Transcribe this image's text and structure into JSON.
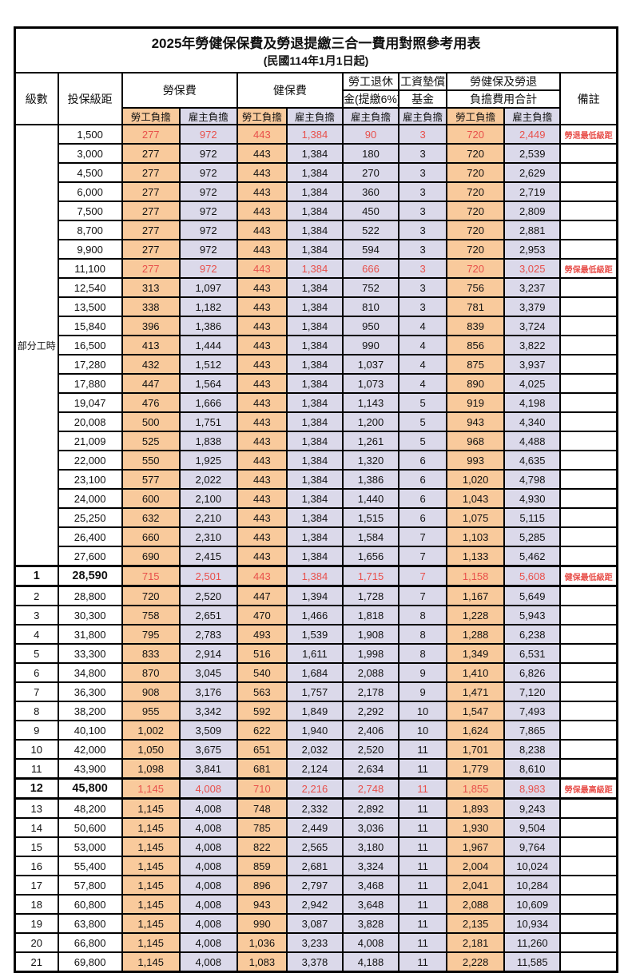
{
  "title": "2025年勞健保保費及勞退提繳三合一費用對照參考用表",
  "subtitle": "(民國114年1月1日起)",
  "colors": {
    "employee_bg": "#F9CA9C",
    "employer_bg": "#DBD9EA",
    "highlight_red": "#E8504B",
    "border": "#000000"
  },
  "table": {
    "headers": {
      "level": "級數",
      "bracket": "投保級距",
      "labor": "勞保費",
      "health": "健保費",
      "pension_l1": "勞工退休",
      "pension_l2": "金(提繳6%)",
      "wagefund_l1": "工資墊償",
      "wagefund_l2": "基金",
      "total_l1": "勞健保及勞退",
      "total_l2": "負擔費用合計",
      "employee": "勞工負擔",
      "employer": "雇主負擔",
      "note": "備註"
    },
    "part_time_label": "部分工時",
    "part_time_row_count": 23,
    "rows": [
      {
        "level": "",
        "bracket": "1,500",
        "values": [
          "277",
          "972",
          "443",
          "1,384",
          "90",
          "3",
          "720",
          "2,449"
        ],
        "note": "勞退最低級距",
        "red": true
      },
      {
        "level": "",
        "bracket": "3,000",
        "values": [
          "277",
          "972",
          "443",
          "1,384",
          "180",
          "3",
          "720",
          "2,539"
        ],
        "note": ""
      },
      {
        "level": "",
        "bracket": "4,500",
        "values": [
          "277",
          "972",
          "443",
          "1,384",
          "270",
          "3",
          "720",
          "2,629"
        ],
        "note": ""
      },
      {
        "level": "",
        "bracket": "6,000",
        "values": [
          "277",
          "972",
          "443",
          "1,384",
          "360",
          "3",
          "720",
          "2,719"
        ],
        "note": ""
      },
      {
        "level": "",
        "bracket": "7,500",
        "values": [
          "277",
          "972",
          "443",
          "1,384",
          "450",
          "3",
          "720",
          "2,809"
        ],
        "note": ""
      },
      {
        "level": "",
        "bracket": "8,700",
        "values": [
          "277",
          "972",
          "443",
          "1,384",
          "522",
          "3",
          "720",
          "2,881"
        ],
        "note": ""
      },
      {
        "level": "",
        "bracket": "9,900",
        "values": [
          "277",
          "972",
          "443",
          "1,384",
          "594",
          "3",
          "720",
          "2,953"
        ],
        "note": ""
      },
      {
        "level": "",
        "bracket": "11,100",
        "values": [
          "277",
          "972",
          "443",
          "1,384",
          "666",
          "3",
          "720",
          "3,025"
        ],
        "note": "勞保最低級距",
        "red": true
      },
      {
        "level": "",
        "bracket": "12,540",
        "values": [
          "313",
          "1,097",
          "443",
          "1,384",
          "752",
          "3",
          "756",
          "3,237"
        ],
        "note": ""
      },
      {
        "level": "",
        "bracket": "13,500",
        "values": [
          "338",
          "1,182",
          "443",
          "1,384",
          "810",
          "3",
          "781",
          "3,379"
        ],
        "note": ""
      },
      {
        "level": "",
        "bracket": "15,840",
        "values": [
          "396",
          "1,386",
          "443",
          "1,384",
          "950",
          "4",
          "839",
          "3,724"
        ],
        "note": ""
      },
      {
        "level": "",
        "bracket": "16,500",
        "values": [
          "413",
          "1,444",
          "443",
          "1,384",
          "990",
          "4",
          "856",
          "3,822"
        ],
        "note": ""
      },
      {
        "level": "",
        "bracket": "17,280",
        "values": [
          "432",
          "1,512",
          "443",
          "1,384",
          "1,037",
          "4",
          "875",
          "3,937"
        ],
        "note": ""
      },
      {
        "level": "",
        "bracket": "17,880",
        "values": [
          "447",
          "1,564",
          "443",
          "1,384",
          "1,073",
          "4",
          "890",
          "4,025"
        ],
        "note": ""
      },
      {
        "level": "",
        "bracket": "19,047",
        "values": [
          "476",
          "1,666",
          "443",
          "1,384",
          "1,143",
          "5",
          "919",
          "4,198"
        ],
        "note": ""
      },
      {
        "level": "",
        "bracket": "20,008",
        "values": [
          "500",
          "1,751",
          "443",
          "1,384",
          "1,200",
          "5",
          "943",
          "4,340"
        ],
        "note": ""
      },
      {
        "level": "",
        "bracket": "21,009",
        "values": [
          "525",
          "1,838",
          "443",
          "1,384",
          "1,261",
          "5",
          "968",
          "4,488"
        ],
        "note": ""
      },
      {
        "level": "",
        "bracket": "22,000",
        "values": [
          "550",
          "1,925",
          "443",
          "1,384",
          "1,320",
          "6",
          "993",
          "4,635"
        ],
        "note": ""
      },
      {
        "level": "",
        "bracket": "23,100",
        "values": [
          "577",
          "2,022",
          "443",
          "1,384",
          "1,386",
          "6",
          "1,020",
          "4,798"
        ],
        "note": ""
      },
      {
        "level": "",
        "bracket": "24,000",
        "values": [
          "600",
          "2,100",
          "443",
          "1,384",
          "1,440",
          "6",
          "1,043",
          "4,930"
        ],
        "note": ""
      },
      {
        "level": "",
        "bracket": "25,250",
        "values": [
          "632",
          "2,210",
          "443",
          "1,384",
          "1,515",
          "6",
          "1,075",
          "5,115"
        ],
        "note": ""
      },
      {
        "level": "",
        "bracket": "26,400",
        "values": [
          "660",
          "2,310",
          "443",
          "1,384",
          "1,584",
          "7",
          "1,103",
          "5,285"
        ],
        "note": ""
      },
      {
        "level": "",
        "bracket": "27,600",
        "values": [
          "690",
          "2,415",
          "443",
          "1,384",
          "1,656",
          "7",
          "1,133",
          "5,462"
        ],
        "note": ""
      },
      {
        "level": "1",
        "bracket": "28,590",
        "values": [
          "715",
          "2,501",
          "443",
          "1,384",
          "1,715",
          "7",
          "1,158",
          "5,608"
        ],
        "note": "健保最低級距",
        "red": true,
        "bold": true,
        "thick": true
      },
      {
        "level": "2",
        "bracket": "28,800",
        "values": [
          "720",
          "2,520",
          "447",
          "1,394",
          "1,728",
          "7",
          "1,167",
          "5,649"
        ],
        "note": ""
      },
      {
        "level": "3",
        "bracket": "30,300",
        "values": [
          "758",
          "2,651",
          "470",
          "1,466",
          "1,818",
          "8",
          "1,228",
          "5,943"
        ],
        "note": ""
      },
      {
        "level": "4",
        "bracket": "31,800",
        "values": [
          "795",
          "2,783",
          "493",
          "1,539",
          "1,908",
          "8",
          "1,288",
          "6,238"
        ],
        "note": ""
      },
      {
        "level": "5",
        "bracket": "33,300",
        "values": [
          "833",
          "2,914",
          "516",
          "1,611",
          "1,998",
          "8",
          "1,349",
          "6,531"
        ],
        "note": ""
      },
      {
        "level": "6",
        "bracket": "34,800",
        "values": [
          "870",
          "3,045",
          "540",
          "1,684",
          "2,088",
          "9",
          "1,410",
          "6,826"
        ],
        "note": ""
      },
      {
        "level": "7",
        "bracket": "36,300",
        "values": [
          "908",
          "3,176",
          "563",
          "1,757",
          "2,178",
          "9",
          "1,471",
          "7,120"
        ],
        "note": ""
      },
      {
        "level": "8",
        "bracket": "38,200",
        "values": [
          "955",
          "3,342",
          "592",
          "1,849",
          "2,292",
          "10",
          "1,547",
          "7,493"
        ],
        "note": ""
      },
      {
        "level": "9",
        "bracket": "40,100",
        "values": [
          "1,002",
          "3,509",
          "622",
          "1,940",
          "2,406",
          "10",
          "1,624",
          "7,865"
        ],
        "note": ""
      },
      {
        "level": "10",
        "bracket": "42,000",
        "values": [
          "1,050",
          "3,675",
          "651",
          "2,032",
          "2,520",
          "11",
          "1,701",
          "8,238"
        ],
        "note": ""
      },
      {
        "level": "11",
        "bracket": "43,900",
        "values": [
          "1,098",
          "3,841",
          "681",
          "2,124",
          "2,634",
          "11",
          "1,779",
          "8,610"
        ],
        "note": ""
      },
      {
        "level": "12",
        "bracket": "45,800",
        "values": [
          "1,145",
          "4,008",
          "710",
          "2,216",
          "2,748",
          "11",
          "1,855",
          "8,983"
        ],
        "note": "勞保最高級距",
        "red": true,
        "bold": true,
        "thick": true
      },
      {
        "level": "13",
        "bracket": "48,200",
        "values": [
          "1,145",
          "4,008",
          "748",
          "2,332",
          "2,892",
          "11",
          "1,893",
          "9,243"
        ],
        "note": ""
      },
      {
        "level": "14",
        "bracket": "50,600",
        "values": [
          "1,145",
          "4,008",
          "785",
          "2,449",
          "3,036",
          "11",
          "1,930",
          "9,504"
        ],
        "note": ""
      },
      {
        "level": "15",
        "bracket": "53,000",
        "values": [
          "1,145",
          "4,008",
          "822",
          "2,565",
          "3,180",
          "11",
          "1,967",
          "9,764"
        ],
        "note": ""
      },
      {
        "level": "16",
        "bracket": "55,400",
        "values": [
          "1,145",
          "4,008",
          "859",
          "2,681",
          "3,324",
          "11",
          "2,004",
          "10,024"
        ],
        "note": ""
      },
      {
        "level": "17",
        "bracket": "57,800",
        "values": [
          "1,145",
          "4,008",
          "896",
          "2,797",
          "3,468",
          "11",
          "2,041",
          "10,284"
        ],
        "note": ""
      },
      {
        "level": "18",
        "bracket": "60,800",
        "values": [
          "1,145",
          "4,008",
          "943",
          "2,942",
          "3,648",
          "11",
          "2,088",
          "10,609"
        ],
        "note": ""
      },
      {
        "level": "19",
        "bracket": "63,800",
        "values": [
          "1,145",
          "4,008",
          "990",
          "3,087",
          "3,828",
          "11",
          "2,135",
          "10,934"
        ],
        "note": ""
      },
      {
        "level": "20",
        "bracket": "66,800",
        "values": [
          "1,145",
          "4,008",
          "1,036",
          "3,233",
          "4,008",
          "11",
          "2,181",
          "11,260"
        ],
        "note": ""
      },
      {
        "level": "21",
        "bracket": "69,800",
        "values": [
          "1,145",
          "4,008",
          "1,083",
          "3,378",
          "4,188",
          "11",
          "2,228",
          "11,585"
        ],
        "note": ""
      }
    ]
  }
}
